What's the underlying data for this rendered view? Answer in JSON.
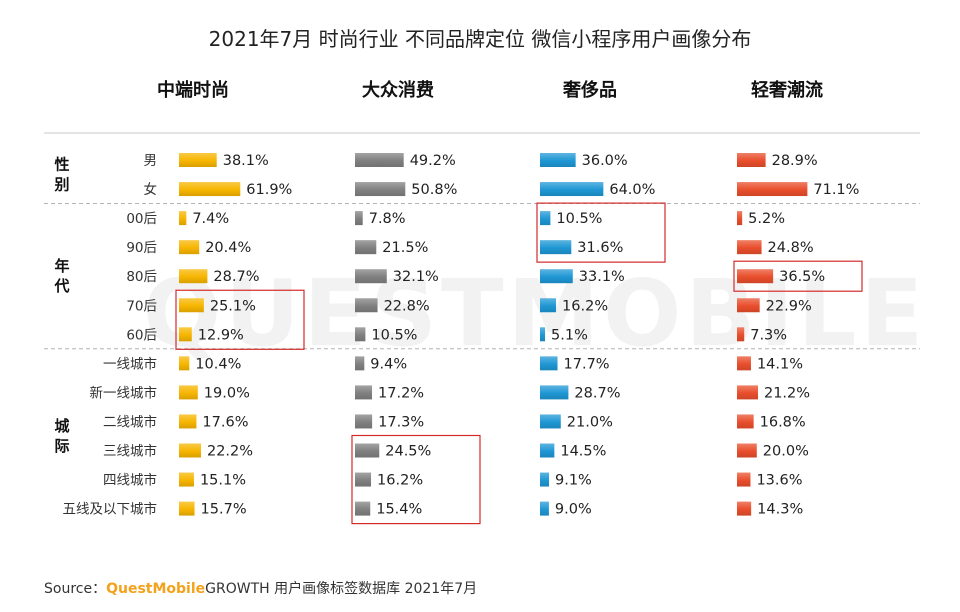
{
  "chart_data": {
    "type": "bar",
    "orientation": "horizontal",
    "title": "2021年7月 时尚行业 不同品牌定位 微信小程序用户画像分布",
    "watermark": "QUESTMOBILE",
    "groups": [
      {
        "name": "性别",
        "rows": [
          "男",
          "女"
        ]
      },
      {
        "name": "年代",
        "rows": [
          "00后",
          "90后",
          "80后",
          "70后",
          "60后"
        ]
      },
      {
        "name": "城际",
        "rows": [
          "一线城市",
          "新一线城市",
          "二线城市",
          "三线城市",
          "四线城市",
          "五线及以下城市"
        ]
      }
    ],
    "categories": [
      "男",
      "女",
      "00后",
      "90后",
      "80后",
      "70后",
      "60后",
      "一线城市",
      "新一线城市",
      "二线城市",
      "三线城市",
      "四线城市",
      "五线及以下城市"
    ],
    "unit": "%",
    "series": [
      {
        "name": "中端时尚",
        "color": "#f7b500",
        "values": [
          38.1,
          61.9,
          7.4,
          20.4,
          28.7,
          25.1,
          12.9,
          10.4,
          19.0,
          17.6,
          22.2,
          15.1,
          15.7
        ]
      },
      {
        "name": "大众消费",
        "color": "#808080",
        "values": [
          49.2,
          50.8,
          7.8,
          21.5,
          32.1,
          22.8,
          10.5,
          9.4,
          17.2,
          17.3,
          24.5,
          16.2,
          15.4
        ]
      },
      {
        "name": "奢侈品",
        "color": "#1f97d4",
        "values": [
          36.0,
          64.0,
          10.5,
          31.6,
          33.1,
          16.2,
          5.1,
          17.7,
          28.7,
          21.0,
          14.5,
          9.1,
          9.0
        ]
      },
      {
        "name": "轻奢潮流",
        "color": "#e94e2c",
        "values": [
          28.9,
          71.1,
          5.2,
          24.8,
          36.5,
          22.9,
          7.3,
          14.1,
          21.2,
          16.8,
          20.0,
          13.6,
          14.3
        ]
      }
    ],
    "highlights": [
      {
        "series": "中端时尚",
        "rows": [
          "70后",
          "60后"
        ]
      },
      {
        "series": "大众消费",
        "rows": [
          "三线城市",
          "四线城市",
          "五线及以下城市"
        ]
      },
      {
        "series": "奢侈品",
        "rows": [
          "00后",
          "90后"
        ]
      },
      {
        "series": "轻奢潮流",
        "rows": [
          "80后"
        ]
      }
    ],
    "source": {
      "prefix": "Source：",
      "brand": "QuestMobile",
      "suffix": "GROWTH 用户画像标签数据库 2021年7月"
    }
  }
}
